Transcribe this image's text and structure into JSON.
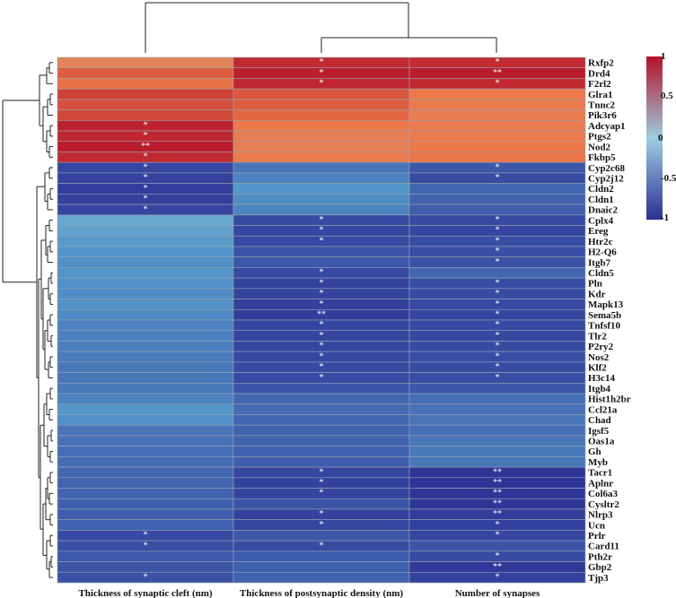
{
  "chart_data": {
    "type": "heatmap",
    "columns": [
      "Thickness of synaptic cleft (nm)",
      "Thickness of postsynaptic density (nm)",
      "Number of synapses"
    ],
    "rows": [
      "Rxfp2",
      "Drd4",
      "F2rl2",
      "Glra1",
      "Tnnc2",
      "Pik3r6",
      "Adcyap1",
      "Ptgs2",
      "Nod2",
      "Fkbp5",
      "Cyp2c68",
      "Cyp2j12",
      "Cldn2",
      "Cldn1",
      "Dnaic2",
      "Cplx4",
      "Ereg",
      "Htr2c",
      "H2-Q6",
      "Itgb7",
      "Cldn5",
      "Pln",
      "Kdr",
      "Mapk13",
      "Sema5b",
      "Tnfsf10",
      "Tlr2",
      "P2ry2",
      "Nos2",
      "Klf2",
      "H3c14",
      "Itgb4",
      "Hist1h2br",
      "Ccl21a",
      "Chad",
      "Igsf5",
      "Oas1a",
      "Gh",
      "Myb",
      "Tacr1",
      "Aplnr",
      "Col6a3",
      "Cysltr2",
      "Nlrp3",
      "Ucn",
      "Prlr",
      "Card11",
      "Pth2r",
      "Gbp2",
      "Tjp3"
    ],
    "values": [
      [
        0.62,
        0.93,
        0.92
      ],
      [
        0.78,
        0.96,
        0.97
      ],
      [
        0.72,
        0.94,
        0.93
      ],
      [
        0.86,
        0.8,
        0.7
      ],
      [
        0.82,
        0.78,
        0.68
      ],
      [
        0.84,
        0.75,
        0.66
      ],
      [
        0.95,
        0.7,
        0.68
      ],
      [
        0.94,
        0.66,
        0.69
      ],
      [
        0.97,
        0.64,
        0.7
      ],
      [
        0.93,
        0.67,
        0.71
      ],
      [
        -0.88,
        -0.62,
        -0.78
      ],
      [
        -0.9,
        -0.55,
        -0.85
      ],
      [
        -0.92,
        -0.45,
        -0.7
      ],
      [
        -0.91,
        -0.5,
        -0.72
      ],
      [
        -0.89,
        -0.55,
        -0.75
      ],
      [
        -0.32,
        -0.85,
        -0.86
      ],
      [
        -0.36,
        -0.87,
        -0.88
      ],
      [
        -0.42,
        -0.86,
        -0.84
      ],
      [
        -0.45,
        -0.8,
        -0.83
      ],
      [
        -0.48,
        -0.78,
        -0.82
      ],
      [
        -0.46,
        -0.86,
        -0.7
      ],
      [
        -0.48,
        -0.9,
        -0.84
      ],
      [
        -0.5,
        -0.89,
        -0.85
      ],
      [
        -0.47,
        -0.91,
        -0.86
      ],
      [
        -0.52,
        -0.93,
        -0.88
      ],
      [
        -0.55,
        -0.88,
        -0.86
      ],
      [
        -0.56,
        -0.89,
        -0.87
      ],
      [
        -0.58,
        -0.88,
        -0.85
      ],
      [
        -0.6,
        -0.87,
        -0.84
      ],
      [
        -0.61,
        -0.86,
        -0.85
      ],
      [
        -0.62,
        -0.86,
        -0.84
      ],
      [
        -0.6,
        -0.8,
        -0.78
      ],
      [
        -0.55,
        -0.7,
        -0.66
      ],
      [
        -0.45,
        -0.68,
        -0.64
      ],
      [
        -0.48,
        -0.7,
        -0.62
      ],
      [
        -0.62,
        -0.72,
        -0.66
      ],
      [
        -0.64,
        -0.73,
        -0.62
      ],
      [
        -0.66,
        -0.74,
        -0.6
      ],
      [
        -0.67,
        -0.75,
        -0.62
      ],
      [
        -0.7,
        -0.88,
        -0.97
      ],
      [
        -0.72,
        -0.9,
        -0.98
      ],
      [
        -0.73,
        -0.89,
        -0.97
      ],
      [
        -0.74,
        -0.8,
        -0.96
      ],
      [
        -0.75,
        -0.9,
        -0.93
      ],
      [
        -0.73,
        -0.88,
        -0.91
      ],
      [
        -0.86,
        -0.78,
        -0.88
      ],
      [
        -0.84,
        -0.85,
        -0.8
      ],
      [
        -0.78,
        -0.76,
        -0.85
      ],
      [
        -0.8,
        -0.74,
        -0.95
      ],
      [
        -0.82,
        -0.72,
        -0.9
      ]
    ],
    "significance": [
      [
        "",
        "*",
        "*"
      ],
      [
        "",
        "*",
        "**"
      ],
      [
        "",
        "*",
        "*"
      ],
      [
        "",
        "",
        ""
      ],
      [
        "",
        "",
        ""
      ],
      [
        "",
        "",
        ""
      ],
      [
        "*",
        "",
        ""
      ],
      [
        "*",
        "",
        ""
      ],
      [
        "**",
        "",
        ""
      ],
      [
        "*",
        "",
        ""
      ],
      [
        "*",
        "",
        "*"
      ],
      [
        "*",
        "",
        "*"
      ],
      [
        "*",
        "",
        ""
      ],
      [
        "*",
        "",
        ""
      ],
      [
        "*",
        "",
        ""
      ],
      [
        "",
        "*",
        "*"
      ],
      [
        "",
        "*",
        "*"
      ],
      [
        "",
        "*",
        "*"
      ],
      [
        "",
        "",
        "*"
      ],
      [
        "",
        "",
        "*"
      ],
      [
        "",
        "*",
        ""
      ],
      [
        "",
        "*",
        "*"
      ],
      [
        "",
        "*",
        "*"
      ],
      [
        "",
        "*",
        "*"
      ],
      [
        "",
        "**",
        "*"
      ],
      [
        "",
        "*",
        "*"
      ],
      [
        "",
        "*",
        "*"
      ],
      [
        "",
        "*",
        "*"
      ],
      [
        "",
        "*",
        "*"
      ],
      [
        "",
        "*",
        "*"
      ],
      [
        "",
        "*",
        "*"
      ],
      [
        "",
        "",
        ""
      ],
      [
        "",
        "",
        ""
      ],
      [
        "",
        "",
        ""
      ],
      [
        "",
        "",
        ""
      ],
      [
        "",
        "",
        ""
      ],
      [
        "",
        "",
        ""
      ],
      [
        "",
        "",
        ""
      ],
      [
        "",
        "",
        ""
      ],
      [
        "",
        "*",
        "**"
      ],
      [
        "",
        "*",
        "**"
      ],
      [
        "",
        "*",
        "**"
      ],
      [
        "",
        "",
        "**"
      ],
      [
        "",
        "*",
        "**"
      ],
      [
        "",
        "*",
        "*"
      ],
      [
        "*",
        "",
        "*"
      ],
      [
        "*",
        "*",
        ""
      ],
      [
        "",
        "",
        "*"
      ],
      [
        "",
        "",
        "**"
      ],
      [
        "*",
        "",
        "*"
      ]
    ],
    "colorbar": {
      "range": [
        -1,
        1
      ],
      "ticks": [
        "1",
        "0.5",
        "0",
        "-0.5",
        "-1"
      ],
      "colors": {
        "low": "#2d2f94",
        "mid": "#9ecde0",
        "high": "#b3112a"
      }
    },
    "column_dendrogram": "present",
    "row_dendrogram": "present"
  }
}
